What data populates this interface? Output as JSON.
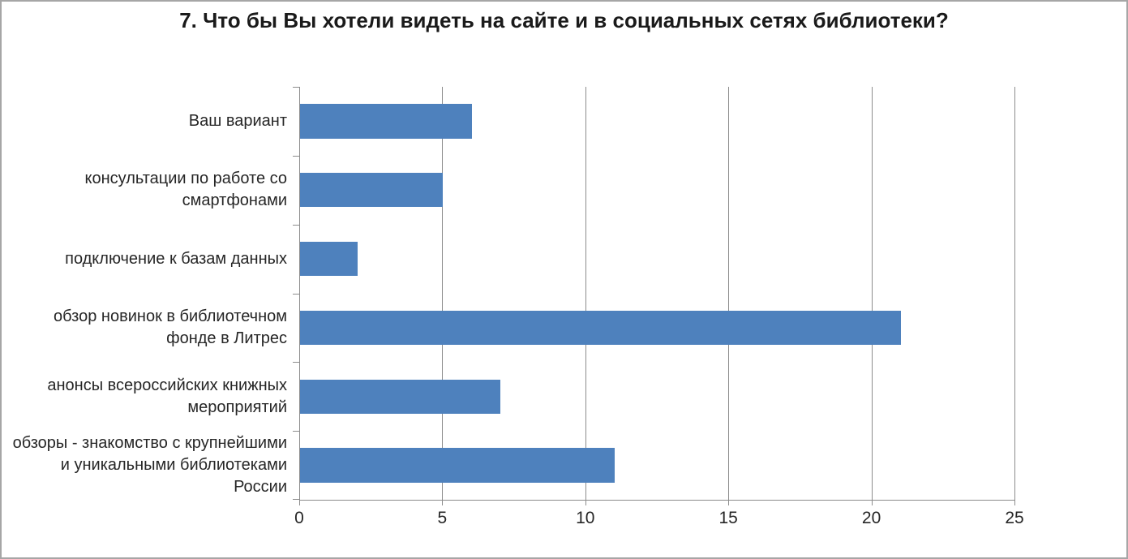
{
  "chart_data": {
    "type": "bar",
    "orientation": "horizontal",
    "title": "7. Что бы Вы хотели видеть на сайте и в социальных сетях библиотеки?",
    "categories": [
      "Ваш вариант",
      "консультации по работе со смартфонами",
      "подключение к базам данных",
      "обзор новинок в библиотечном фонде в Литрес",
      "анонсы всероссийских книжных мероприятий",
      "обзоры - знакомство с крупнейшими и уникальными библиотеками России"
    ],
    "category_lines": [
      [
        "Ваш вариант"
      ],
      [
        "консультации по работе со",
        "смартфонами"
      ],
      [
        "подключение к базам данных"
      ],
      [
        "обзор новинок в библиотечном",
        "фонде в Литрес"
      ],
      [
        "анонсы всероссийских книжных",
        "мероприятий"
      ],
      [
        "обзоры - знакомство с крупнейшими",
        "и уникальными библиотеками России"
      ]
    ],
    "values": [
      6,
      5,
      2,
      21,
      7,
      11
    ],
    "xlabel": "",
    "ylabel": "",
    "xlim": [
      0,
      25
    ],
    "xticks": [
      0,
      5,
      10,
      15,
      20,
      25
    ],
    "grid": true,
    "legend": "none",
    "bar_color": "#4e81bd",
    "axis_color": "#8c8c8c",
    "text_color": "#262626",
    "background_color": "#ffffff"
  }
}
